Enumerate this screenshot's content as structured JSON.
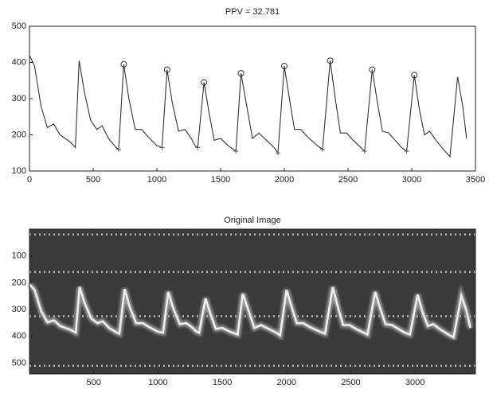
{
  "chart_data": [
    {
      "type": "line",
      "title": "PPV = 32.781",
      "xlim": [
        0,
        3500
      ],
      "xticks": [
        0,
        500,
        1000,
        1500,
        2000,
        2500,
        3000,
        3500
      ],
      "ylim": [
        100,
        500
      ],
      "yticks": [
        100,
        200,
        300,
        400,
        500
      ],
      "series": [
        {
          "color": "#333333",
          "marker": "none",
          "x": [
            0,
            40,
            90,
            140,
            190,
            240,
            320,
            360,
            390,
            430,
            480,
            530,
            570,
            620,
            680,
            700,
            740,
            780,
            830,
            880,
            930,
            1000,
            1040,
            1080,
            1120,
            1170,
            1220,
            1270,
            1300,
            1320,
            1370,
            1410,
            1450,
            1500,
            1560,
            1620,
            1660,
            1700,
            1750,
            1800,
            1860,
            1920,
            1950,
            2000,
            2040,
            2080,
            2130,
            2180,
            2260,
            2300,
            2360,
            2400,
            2440,
            2490,
            2540,
            2600,
            2630,
            2690,
            2730,
            2770,
            2820,
            2870,
            2920,
            2960,
            3020,
            3060,
            3100,
            3140,
            3190,
            3260,
            3300,
            3360,
            3400,
            3430
          ],
          "values": [
            420,
            390,
            280,
            220,
            230,
            200,
            180,
            165,
            405,
            320,
            240,
            215,
            225,
            190,
            165,
            160,
            395,
            300,
            215,
            215,
            195,
            170,
            165,
            380,
            290,
            210,
            215,
            190,
            170,
            165,
            345,
            260,
            185,
            190,
            170,
            155,
            370,
            290,
            190,
            205,
            185,
            165,
            150,
            390,
            300,
            215,
            215,
            195,
            170,
            160,
            405,
            300,
            205,
            205,
            185,
            165,
            155,
            380,
            290,
            210,
            205,
            185,
            165,
            155,
            365,
            270,
            200,
            210,
            185,
            155,
            140,
            360,
            280,
            190
          ]
        },
        {
          "color": "#333333",
          "marker": "circle",
          "x": [
            740,
            1080,
            1370,
            1660,
            2000,
            2360,
            2690,
            3020
          ],
          "values": [
            395,
            380,
            345,
            370,
            390,
            405,
            380,
            365
          ]
        },
        {
          "color": "#555555",
          "marker": "cross",
          "x": [
            700,
            1040,
            1320,
            1620,
            1950,
            2300,
            2630,
            2960
          ],
          "values": [
            160,
            165,
            165,
            155,
            150,
            160,
            155,
            155
          ]
        }
      ]
    },
    {
      "type": "image",
      "title": "Original Image",
      "xlim": [
        0,
        3470
      ],
      "xticks": [
        500,
        1000,
        1500,
        2000,
        2500,
        3000
      ],
      "ylim": [
        540,
        0
      ],
      "yticks": [
        100,
        200,
        300,
        400,
        500
      ]
    }
  ]
}
